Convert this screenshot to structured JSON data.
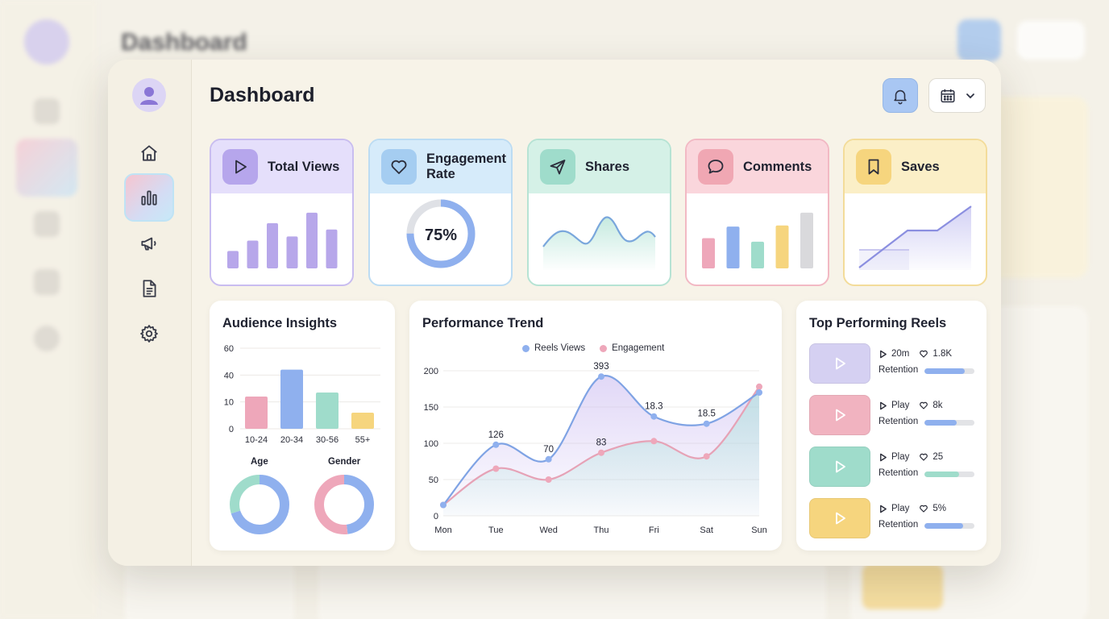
{
  "header": {
    "title": "Dashboard"
  },
  "background": {
    "title": "Dashboard"
  },
  "colors": {
    "purple": "#b7a7ea",
    "blue": "#8fb0ee",
    "green": "#9fdccb",
    "pink": "#eea7ba",
    "yellow": "#f6d57e",
    "gray": "#d9d9dc"
  },
  "sidebar": {
    "items": [
      {
        "icon": "home-icon"
      },
      {
        "icon": "bar-chart-icon",
        "active": true
      },
      {
        "icon": "megaphone-icon"
      },
      {
        "icon": "document-icon"
      },
      {
        "icon": "gear-icon"
      }
    ]
  },
  "stats": {
    "total_views": {
      "label": "Total Views",
      "bars": [
        0.3,
        0.48,
        0.78,
        0.55,
        0.96,
        0.67
      ]
    },
    "engagement_rate": {
      "label_line1": "Engagement",
      "label_line2": "Rate",
      "value": "75%",
      "percent": 75
    },
    "shares": {
      "label": "Shares"
    },
    "comments": {
      "label": "Comments",
      "bars": [
        0.52,
        0.72,
        0.46,
        0.74,
        0.96
      ]
    },
    "saves": {
      "label": "Saves"
    }
  },
  "audience": {
    "title": "Audience Insights",
    "chart_data": {
      "type": "bar",
      "categories": [
        "10-24",
        "20-34",
        "30-56",
        "55+"
      ],
      "values": [
        24,
        44,
        27,
        12
      ],
      "yticks": [
        "0",
        "10",
        "40",
        "60"
      ]
    },
    "age_label": "Age",
    "gender_label": "Gender",
    "age_donut": [
      {
        "value": 70,
        "color": "#8fb0ee"
      },
      {
        "value": 30,
        "color": "#9fdccb"
      }
    ],
    "gender_donut": [
      {
        "value": 48,
        "color": "#8fb0ee"
      },
      {
        "value": 52,
        "color": "#eea7ba"
      }
    ]
  },
  "trend": {
    "title": "Performance Trend",
    "legend": [
      "Reels Views",
      "Engagement"
    ],
    "chart_data": {
      "type": "line",
      "x": [
        "Mon",
        "Tue",
        "Wed",
        "Thu",
        "Fri",
        "Sat",
        "Sun"
      ],
      "ylim": [
        0,
        200
      ],
      "yticks": [
        0,
        50,
        100,
        150,
        200
      ],
      "series": [
        {
          "name": "Reels Views",
          "values": [
            15,
            98,
            78,
            192,
            137,
            127,
            170
          ]
        },
        {
          "name": "Engagement",
          "values": [
            15,
            65,
            50,
            87,
            103,
            82,
            178
          ]
        }
      ],
      "annotations": [
        {
          "x": "Tue",
          "y": 98,
          "text": "126"
        },
        {
          "x": "Wed",
          "y": 78,
          "text": "70"
        },
        {
          "x": "Thu",
          "y": 192,
          "text": "393"
        },
        {
          "x": "Thu",
          "y": 87,
          "text": "83"
        },
        {
          "x": "Fri",
          "y": 137,
          "text": "18.3"
        },
        {
          "x": "Sat",
          "y": 127,
          "text": "18.5"
        }
      ]
    }
  },
  "reels": {
    "title": "Top Performing Reels",
    "retention_label": "Retention",
    "items": [
      {
        "play": "20m",
        "likes": "1.8K",
        "retention": 0.8,
        "thumb": "#d5d0f2",
        "bar": "#8fb0ee"
      },
      {
        "play": "Play",
        "likes": "8k",
        "retention": 0.65,
        "thumb": "#f1b3c0",
        "bar": "#8fb0ee"
      },
      {
        "play": "Play",
        "likes": "25",
        "retention": 0.7,
        "thumb": "#9fdccb",
        "bar": "#9fdccb"
      },
      {
        "play": "Play",
        "likes": "5%",
        "retention": 0.78,
        "thumb": "#f6d57e",
        "bar": "#8fb0ee"
      }
    ]
  }
}
